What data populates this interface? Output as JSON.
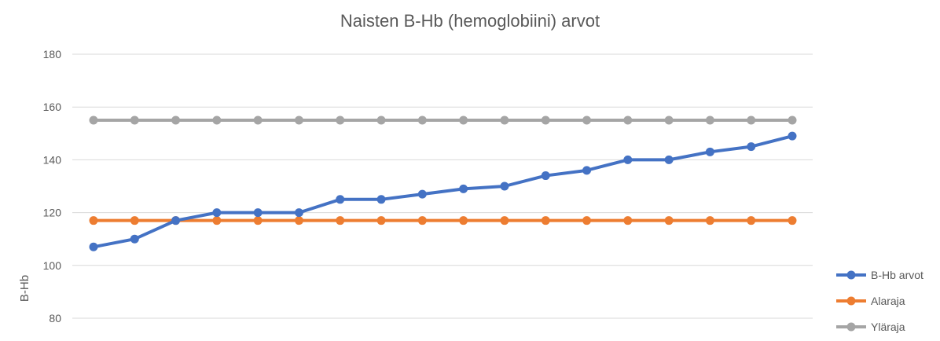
{
  "chart_data": {
    "type": "line",
    "title": "Naisten B-Hb (hemoglobiini) arvot",
    "xlabel": "",
    "ylabel": "B-Hb",
    "ylim": [
      80,
      180
    ],
    "yticks": [
      80,
      100,
      120,
      140,
      160,
      180
    ],
    "grid": true,
    "legend_position": "right",
    "series": [
      {
        "name": "B-Hb arvot",
        "color": "#4472C4",
        "values": [
          107,
          110,
          117,
          120,
          120,
          120,
          125,
          125,
          127,
          129,
          130,
          134,
          136,
          140,
          140,
          143,
          145,
          149
        ]
      },
      {
        "name": "Alaraja",
        "color": "#ED7D31",
        "values": [
          117,
          117,
          117,
          117,
          117,
          117,
          117,
          117,
          117,
          117,
          117,
          117,
          117,
          117,
          117,
          117,
          117,
          117
        ]
      },
      {
        "name": "Yläraja",
        "color": "#A5A5A5",
        "values": [
          155,
          155,
          155,
          155,
          155,
          155,
          155,
          155,
          155,
          155,
          155,
          155,
          155,
          155,
          155,
          155,
          155,
          155
        ]
      }
    ]
  }
}
